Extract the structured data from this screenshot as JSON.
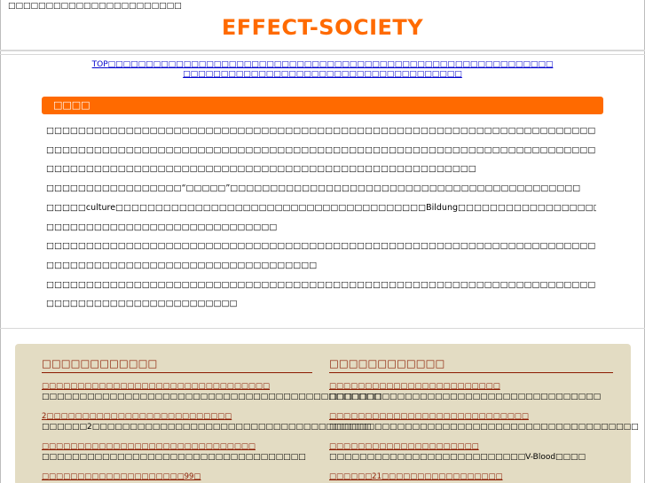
{
  "header": {
    "tagline": "□□□□□□□□□□□□□□□□□□□□□□□",
    "site_title": "EFFECT-SOCIETY"
  },
  "nav": {
    "line1": [
      {
        "label": "TOP"
      },
      {
        "label": "□□□□□□□□□□□□□□□□□□□□□□□□□□□□□□□□□□□□□□□□□□□□□□□□□□□□□□□□□□□"
      }
    ],
    "line2": "□□□□□□□□□□□□□□□□□□□□□□□□□□□□□□□□□□□□□"
  },
  "section": {
    "title": "□□□□",
    "paragraphs": [
      "□□□□□□□□□□□□□□□□□□□□□□□□□□□□□□□□□□□□□□□□□□□□□□□□□□□□□□□□□□□□□□□□□□□□□□□□□□□□□□□□□□",
      "□□□□□□□□□□□□□□□□□□□□□□□□□□□□□□□□□□□□□□□□□□□□□□□□□□□□□□□□□□□□□□□□□□□□□□□□□□□□□□□□",
      "□□□□□□□□□□□□□□□□□□□□□□□□□□□□□□□□□□□□□□□□□□□□□□□□□□□□□□",
      "□□□□□□□□□□□□□□□□□“□□□□□”□□□□□□□□□□□□□□□□□□□□□□□□□□□□□□□□□□□□□□□□□□□□",
      "□□□□□culture□□□□□□□□□□□□□□□□□□□□□□□□□□□□□□□□□□□□□□□Bildung□□□□□□□□□□□□□□□□□□□□□",
      "□□□□□□□□□□□□□□□□□□□□□□□□□□□□□",
      "□□□□□□□□□□□□□□□□□□□□□□□□□□□□□□□□□□□□□□□□□□□□□□□□□□□□□□□□□□□□□□□□□□□□□□",
      "□□□□□□□□□□□□□□□□□□□□□□□□□□□□□□□□□□",
      "□□□□□□□□□□□□□□□□□□□□□□□□□□□□□□□□□□□□□□□□□□□□□□□□□□□□□□□□□□□□□□□□□□□□□□□□□□□□□",
      "□□□□□□□□□□□□□□□□□□□□□□□□"
    ]
  },
  "panel": {
    "left": {
      "heading": "□□□□□□□□□□□□",
      "items": [
        {
          "link": "□□□□□□□□□□□□□□□□□□□□□□□□□□□□□□□□",
          "desc": "□□□□□□□□□□□□□□□□□□□□□□□□□□□□□□□□□□□□□□□□□□□□□"
        },
        {
          "link": "2□□□□□□□□□□□□□□□□□□□□□□□□□□",
          "desc": "□□□□□□2□□□□□□□□□□□□□□□□□□□□□□□□□□□□□□□□□□□□□"
        },
        {
          "link": "□□□□□□□□□□□□□□□□□□□□□□□□□□□□□□",
          "desc": "□□□□□□□□□□□□□□□□□□□□□□□□□□□□□□□□□□□"
        },
        {
          "link": "□□□□□□□□□□□□□□□□□□□□99□",
          "desc": ""
        }
      ]
    },
    "right": {
      "heading": "□□□□□□□□□□□□",
      "items": [
        {
          "link": "□□□□□□□□□□□□□□□□□□□□□□□□",
          "desc": "□□□□□□□□□□□□□□□□□□□□□□□□□□□□□□□□□□□□"
        },
        {
          "link": "□□□□□□□□□□□□□□□□□□□□□□□□□□□□",
          "desc": "□□□□□□□□□□□□□□□□□□□□□□□□□□□□□□□□□□□□□□□□□"
        },
        {
          "link": "□□□□□□□□□□□□□□□□□□□□□",
          "desc": "□□□□□□□□□□□□□□□□□□□□□□□□□□V-Blood□□□□"
        },
        {
          "link": "□□□□□□21□□□□□□□□□□□□□□□□□",
          "desc": ""
        }
      ]
    }
  }
}
